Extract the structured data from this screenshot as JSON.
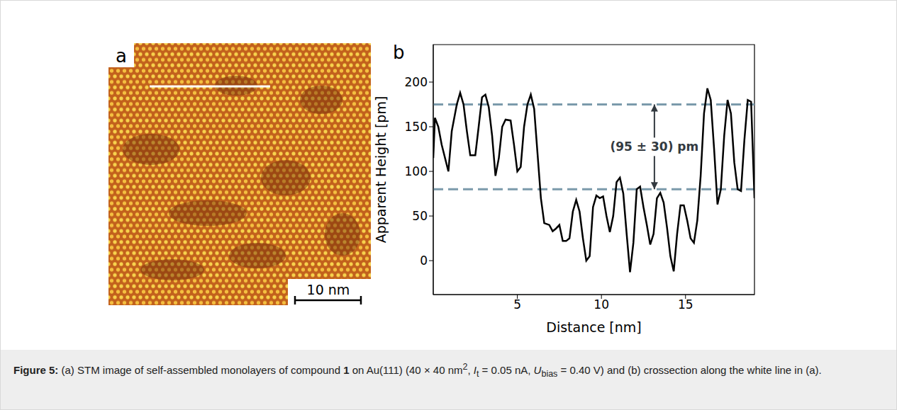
{
  "figure": {
    "caption_label": "Figure 5:",
    "caption": [
      {
        "text": "(a) STM image of self-assembled monolayers of compound "
      },
      {
        "text": "1",
        "style": "bold"
      },
      {
        "text": " on Au(111) (40 × 40 nm"
      },
      {
        "text": "2",
        "style": "sup"
      },
      {
        "text": ", "
      },
      {
        "text": "I",
        "style": "italic"
      },
      {
        "text": "t",
        "style": "sub"
      },
      {
        "text": " = 0.05 nA, "
      },
      {
        "text": "U",
        "style": "italic"
      },
      {
        "text": "bias",
        "style": "sub"
      },
      {
        "text": " = 0.40 V) and (b) crossection along the white line in (a)."
      }
    ]
  },
  "panels": [
    {
      "label": "a",
      "type": "image",
      "scale_bar": "10 nm"
    },
    {
      "label": "b",
      "type": "chart"
    }
  ],
  "chart_data": {
    "type": "line",
    "xlabel": "Distance [nm]",
    "ylabel": "Apparent Height [pm]",
    "color": "#000000",
    "x": [
      0,
      0.1,
      0.3,
      0.5,
      0.7,
      0.9,
      1.1,
      1.4,
      1.6,
      1.8,
      2.0,
      2.2,
      2.5,
      2.7,
      2.9,
      3.1,
      3.3,
      3.5,
      3.7,
      3.9,
      4.1,
      4.3,
      4.6,
      4.8,
      5.0,
      5.2,
      5.4,
      5.6,
      5.8,
      6.0,
      6.2,
      6.4,
      6.6,
      6.9,
      7.1,
      7.3,
      7.5,
      7.7,
      7.9,
      8.1,
      8.3,
      8.5,
      8.7,
      8.9,
      9.1,
      9.3,
      9.5,
      9.7,
      9.9,
      10.1,
      10.3,
      10.5,
      10.7,
      10.9,
      11.1,
      11.3,
      11.5,
      11.7,
      11.9,
      12.1,
      12.3,
      12.5,
      12.7,
      12.9,
      13.1,
      13.3,
      13.5,
      13.7,
      13.9,
      14.1,
      14.3,
      14.5,
      14.7,
      14.9,
      15.1,
      15.3,
      15.5,
      15.7,
      15.9,
      16.1,
      16.3,
      16.5,
      16.7,
      16.9,
      17.1,
      17.3,
      17.5,
      17.7,
      17.9,
      18.1,
      18.3,
      18.5,
      18.7,
      18.9,
      19.1
    ],
    "values": [
      115,
      160,
      150,
      130,
      115,
      100,
      145,
      175,
      188,
      175,
      145,
      118,
      118,
      150,
      183,
      186,
      172,
      140,
      95,
      115,
      150,
      158,
      157,
      130,
      100,
      105,
      150,
      175,
      186,
      170,
      120,
      70,
      42,
      40,
      33,
      36,
      40,
      22,
      22,
      25,
      55,
      68,
      55,
      25,
      0,
      5,
      60,
      73,
      70,
      72,
      50,
      32,
      50,
      88,
      93,
      75,
      30,
      -13,
      20,
      80,
      83,
      60,
      40,
      18,
      30,
      70,
      76,
      65,
      37,
      5,
      -12,
      30,
      62,
      62,
      45,
      25,
      20,
      45,
      95,
      165,
      193,
      180,
      125,
      63,
      80,
      140,
      180,
      165,
      110,
      80,
      78,
      135,
      180,
      178,
      70
    ],
    "xlim": [
      0,
      19.1
    ],
    "ylim": [
      -38,
      242
    ],
    "xticks": [
      5,
      10,
      15
    ],
    "yticks": [
      0,
      50,
      100,
      150,
      200
    ],
    "reference_lines": [
      {
        "value": 175,
        "color": "#7b9aab",
        "line_style": "dashed"
      },
      {
        "value": 80,
        "color": "#7b9aab",
        "line_style": "dashed"
      }
    ],
    "annotation": {
      "text": "(95 ± 30) pm",
      "x": 13.15,
      "y_from": 80,
      "y_to": 175,
      "color": "#333a40"
    }
  }
}
